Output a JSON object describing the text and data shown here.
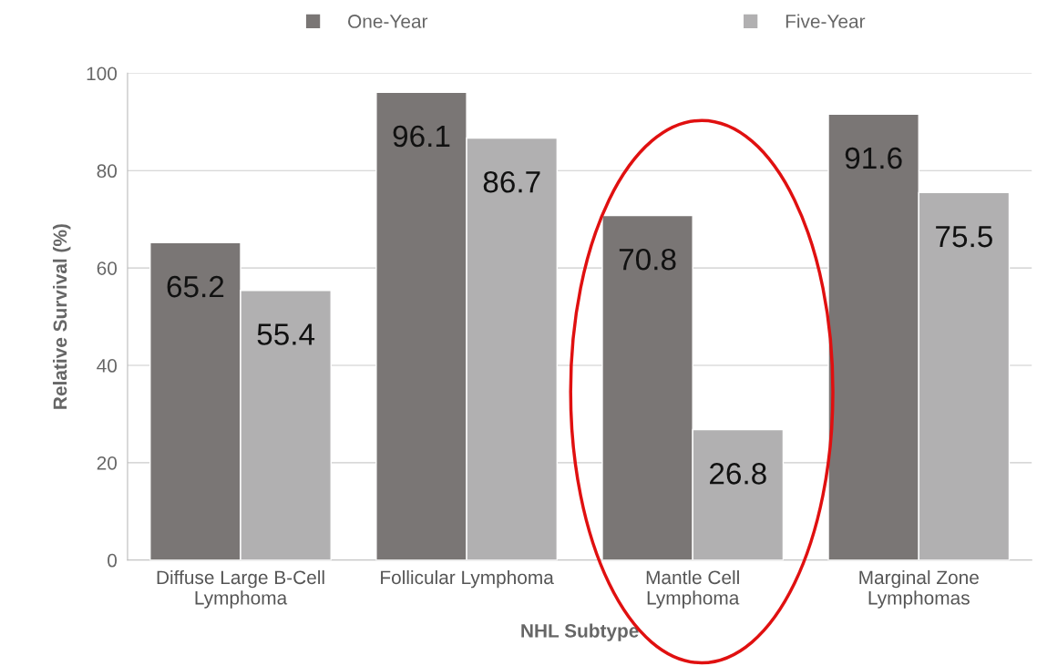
{
  "chart_data": {
    "type": "bar",
    "xlabel": "NHL Subtype",
    "ylabel": "Relative Survival (%)",
    "categories": [
      "Diffuse Large B-Cell\nLymphoma",
      "Follicular Lymphoma",
      "Mantle Cell\nLymphoma",
      "Marginal Zone\nLymphomas"
    ],
    "series": [
      {
        "name": "One-Year",
        "color": "#7a7675",
        "values": [
          65.2,
          96.1,
          70.8,
          91.6
        ]
      },
      {
        "name": "Five-Year",
        "color": "#b1b0b1",
        "values": [
          55.4,
          86.7,
          26.8,
          75.5
        ]
      }
    ],
    "ylim": [
      0,
      100
    ],
    "yticks": [
      0,
      20,
      40,
      60,
      80,
      100
    ],
    "grid": "y",
    "legend": "top",
    "data_labels": true
  }
}
